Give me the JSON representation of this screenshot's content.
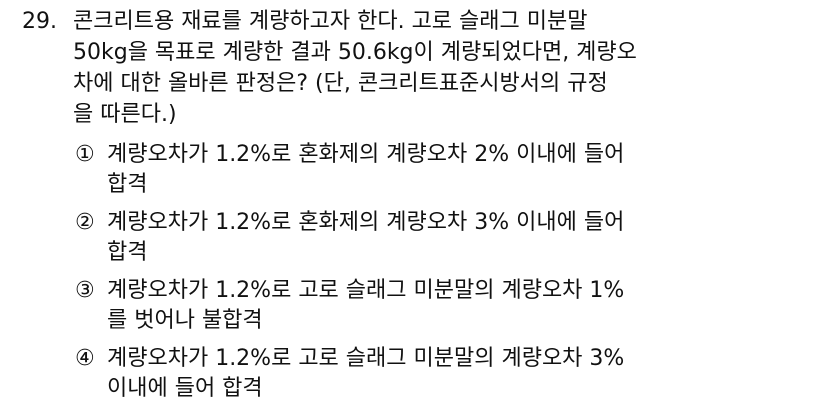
{
  "question": {
    "number": "29.",
    "lines": [
      "콘크리트용 재료를 계량하고자 한다. 고로 슬래그 미분말",
      "50kg을 목표로 계량한 결과 50.6kg이 계량되었다면, 계량오",
      "차에 대한 올바른 판정은? (단, 콘크리트표준시방서의 규정",
      "을 따른다.)"
    ]
  },
  "options": [
    {
      "marker": "①",
      "lines": [
        "계량오차가 1.2%로 혼화제의 계량오차 2% 이내에 들어",
        "합격"
      ]
    },
    {
      "marker": "②",
      "lines": [
        "계량오차가 1.2%로 혼화제의 계량오차 3% 이내에 들어",
        "합격"
      ]
    },
    {
      "marker": "③",
      "lines": [
        "계량오차가 1.2%로 고로 슬래그 미분말의 계량오차 1%",
        "를 벗어나 불합격"
      ]
    },
    {
      "marker": "④",
      "lines": [
        "계량오차가 1.2%로 고로 슬래그 미분말의 계량오차 3%",
        "이내에 들어 합격"
      ]
    }
  ]
}
